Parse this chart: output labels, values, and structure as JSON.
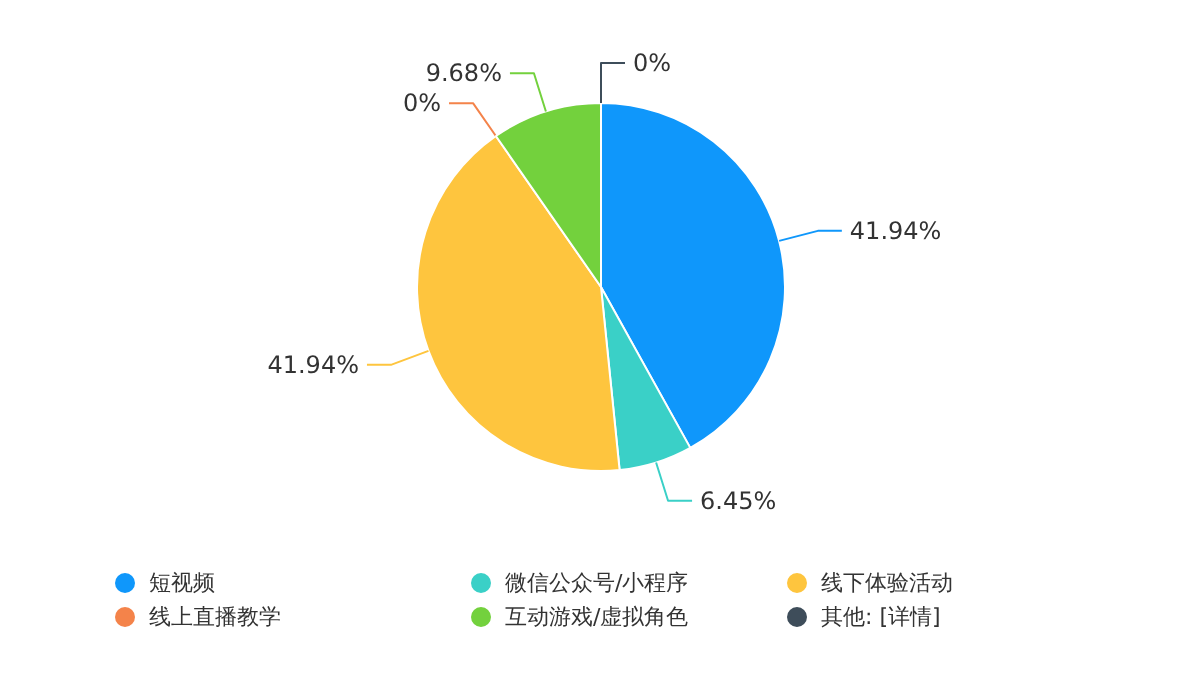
{
  "chart_data": {
    "type": "pie",
    "categories": [
      "短视频",
      "微信公众号/小程序",
      "线下体验活动",
      "线上直播教学",
      "互动游戏/虚拟角色",
      "其他: [详情]"
    ],
    "values": [
      41.94,
      6.45,
      41.94,
      0,
      9.68,
      0
    ],
    "value_labels": [
      "41.94%",
      "6.45%",
      "41.94%",
      "0%",
      "9.68%",
      "0%"
    ],
    "colors": [
      "#0f97fb",
      "#3ad0c7",
      "#fec53e",
      "#f4834a",
      "#73d13d",
      "#3e4d5a"
    ],
    "legend": "bottom"
  }
}
